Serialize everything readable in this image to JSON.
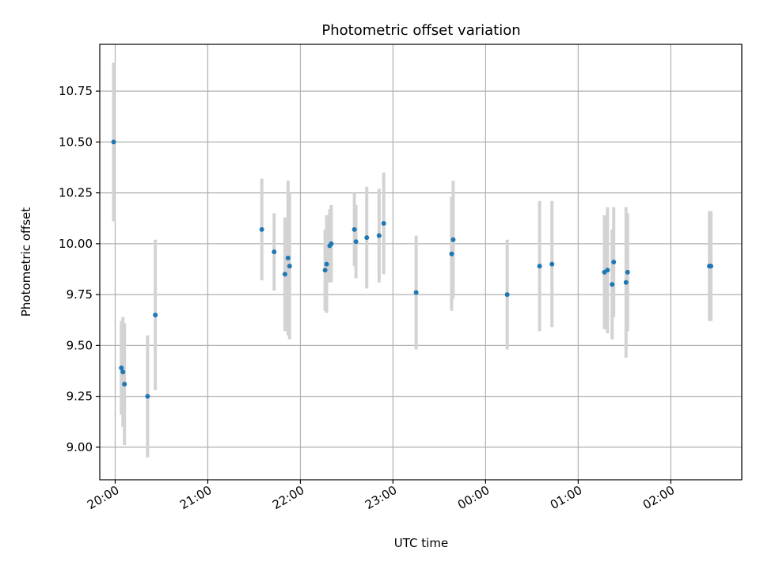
{
  "chart_data": {
    "type": "scatter",
    "title": "Photometric offset variation",
    "xlabel": "UTC time",
    "ylabel": "Photometric offset",
    "xlim": [
      "19:50",
      "02:46"
    ],
    "ylim": [
      8.84,
      10.98
    ],
    "grid": true,
    "x_is_time": true,
    "x_ticks": [
      "20:00",
      "21:00",
      "22:00",
      "23:00",
      "00:00",
      "01:00",
      "02:00"
    ],
    "y_ticks": [
      "9.00",
      "9.25",
      "9.50",
      "9.75",
      "10.00",
      "10.25",
      "10.50",
      "10.75"
    ],
    "colors": {
      "marker": "#1f77b4",
      "errorbar": "#d3d3d3",
      "grid": "#b0b0b0"
    },
    "series": [
      {
        "points": [
          {
            "t": "19:59",
            "y": 10.5,
            "err": 0.39
          },
          {
            "t": "20:04",
            "y": 9.39,
            "err": 0.23
          },
          {
            "t": "20:05",
            "y": 9.37,
            "err": 0.27
          },
          {
            "t": "20:06",
            "y": 9.31,
            "err": 0.3
          },
          {
            "t": "20:21",
            "y": 9.25,
            "err": 0.3
          },
          {
            "t": "20:26",
            "y": 9.65,
            "err": 0.37
          },
          {
            "t": "21:35",
            "y": 10.07,
            "err": 0.25
          },
          {
            "t": "21:43",
            "y": 9.96,
            "err": 0.19
          },
          {
            "t": "21:50",
            "y": 9.85,
            "err": 0.28
          },
          {
            "t": "21:52",
            "y": 9.93,
            "err": 0.38
          },
          {
            "t": "21:53",
            "y": 9.89,
            "err": 0.36
          },
          {
            "t": "22:16",
            "y": 9.87,
            "err": 0.2
          },
          {
            "t": "22:17",
            "y": 9.9,
            "err": 0.24
          },
          {
            "t": "22:19",
            "y": 9.99,
            "err": 0.18
          },
          {
            "t": "22:20",
            "y": 10.0,
            "err": 0.19
          },
          {
            "t": "22:35",
            "y": 10.07,
            "err": 0.18
          },
          {
            "t": "22:36",
            "y": 10.01,
            "err": 0.18
          },
          {
            "t": "22:43",
            "y": 10.03,
            "err": 0.25
          },
          {
            "t": "22:51",
            "y": 10.04,
            "err": 0.23
          },
          {
            "t": "22:54",
            "y": 10.1,
            "err": 0.25
          },
          {
            "t": "23:15",
            "y": 9.76,
            "err": 0.28
          },
          {
            "t": "23:38",
            "y": 9.95,
            "err": 0.28
          },
          {
            "t": "23:39",
            "y": 10.02,
            "err": 0.29
          },
          {
            "t": "00:14",
            "y": 9.75,
            "err": 0.27
          },
          {
            "t": "00:35",
            "y": 9.89,
            "err": 0.32
          },
          {
            "t": "00:43",
            "y": 9.9,
            "err": 0.31
          },
          {
            "t": "01:17",
            "y": 9.86,
            "err": 0.28
          },
          {
            "t": "01:19",
            "y": 9.87,
            "err": 0.31
          },
          {
            "t": "01:22",
            "y": 9.8,
            "err": 0.27
          },
          {
            "t": "01:23",
            "y": 9.91,
            "err": 0.27
          },
          {
            "t": "01:31",
            "y": 9.81,
            "err": 0.37
          },
          {
            "t": "01:32",
            "y": 9.86,
            "err": 0.29
          },
          {
            "t": "02:25",
            "y": 9.89,
            "err": 0.27
          },
          {
            "t": "02:26",
            "y": 9.89,
            "err": 0.27
          }
        ]
      }
    ]
  }
}
